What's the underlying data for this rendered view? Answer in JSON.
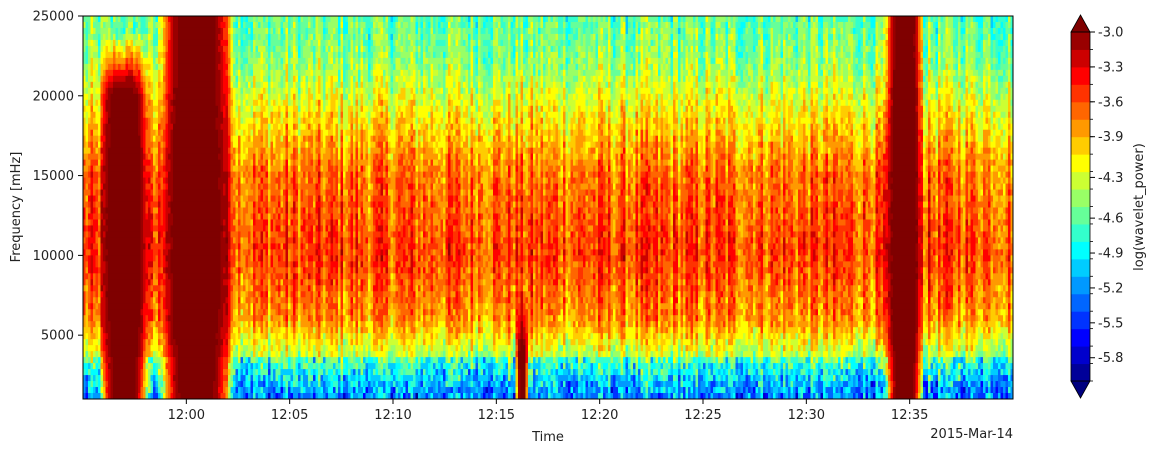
{
  "chart_data": {
    "type": "heatmap",
    "title": "",
    "xlabel": "Time",
    "ylabel": "Frequency [mHz]",
    "date_label": "2015-Mar-14",
    "x_range_minutes": [
      "11:55",
      "12:40"
    ],
    "x_ticks": [
      "12:00",
      "12:05",
      "12:10",
      "12:15",
      "12:20",
      "12:25",
      "12:30",
      "12:35"
    ],
    "ylim": [
      1000,
      25000
    ],
    "y_ticks": [
      5000,
      10000,
      15000,
      20000,
      25000
    ],
    "grid": false,
    "colorbar": {
      "label": "log(wavelet_power)",
      "range": [
        -6.0,
        -3.0
      ],
      "extend": "both",
      "ticks": [
        "-3.0",
        "-3.3",
        "-3.6",
        "-3.9",
        "-4.3",
        "-4.6",
        "-4.9",
        "-5.2",
        "-5.5",
        "-5.8"
      ],
      "tick_values": [
        -3.0,
        -3.3,
        -3.6,
        -3.9,
        -4.25,
        -4.6,
        -4.9,
        -5.2,
        -5.5,
        -5.8
      ],
      "levels": 20,
      "colormap": [
        "#00007f",
        "#0000ff",
        "#007fff",
        "#00ffff",
        "#7fff7f",
        "#ffff00",
        "#ff7f00",
        "#ff0000",
        "#7f0000"
      ]
    },
    "bursts": [
      {
        "start": "11:56",
        "end": "11:58",
        "peak_freq_max": 20000,
        "level": -3.0
      },
      {
        "start": "11:59",
        "end": "12:02",
        "peak_freq_max": 25000,
        "level": -3.0
      },
      {
        "start": "12:16",
        "end": "12:16.5",
        "peak_freq_max": 4000,
        "level": -3.0
      },
      {
        "start": "12:34",
        "end": "12:35.5",
        "peak_freq_max": 25000,
        "level": -3.0
      }
    ],
    "background_profile": [
      {
        "freq": 1000,
        "level": -5.0
      },
      {
        "freq": 3000,
        "level": -4.5
      },
      {
        "freq": 6000,
        "level": -3.8
      },
      {
        "freq": 10000,
        "level": -3.55
      },
      {
        "freq": 15000,
        "level": -3.7
      },
      {
        "freq": 18500,
        "level": -4.05
      },
      {
        "freq": 22000,
        "level": -4.45
      },
      {
        "freq": 25000,
        "level": -4.6
      }
    ]
  }
}
